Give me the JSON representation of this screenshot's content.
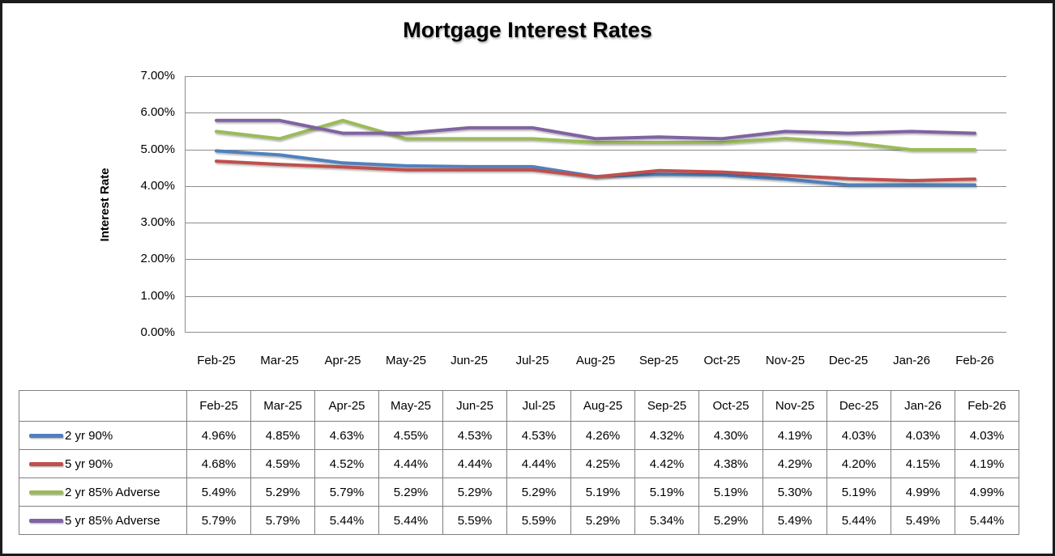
{
  "chart_data": {
    "type": "line",
    "title": "Mortgage Interest Rates",
    "xlabel": "",
    "ylabel": "Interest Rate",
    "categories": [
      "Feb-25",
      "Mar-25",
      "Apr-25",
      "May-25",
      "Jun-25",
      "Jul-25",
      "Aug-25",
      "Sep-25",
      "Oct-25",
      "Nov-25",
      "Dec-25",
      "Jan-26",
      "Feb-26"
    ],
    "series": [
      {
        "name": "2 yr 90%",
        "color": "#4F81BD",
        "values": [
          4.96,
          4.85,
          4.63,
          4.55,
          4.53,
          4.53,
          4.26,
          4.32,
          4.3,
          4.19,
          4.03,
          4.03,
          4.03
        ]
      },
      {
        "name": "5 yr 90%",
        "color": "#C0504D",
        "values": [
          4.68,
          4.59,
          4.52,
          4.44,
          4.44,
          4.44,
          4.25,
          4.42,
          4.38,
          4.29,
          4.2,
          4.15,
          4.19
        ]
      },
      {
        "name": "2 yr 85% Adverse",
        "color": "#9BBB59",
        "values": [
          5.49,
          5.29,
          5.79,
          5.29,
          5.29,
          5.29,
          5.19,
          5.19,
          5.19,
          5.3,
          5.19,
          4.99,
          4.99
        ]
      },
      {
        "name": "5 yr 85% Adverse",
        "color": "#8064A2",
        "values": [
          5.79,
          5.79,
          5.44,
          5.44,
          5.59,
          5.59,
          5.29,
          5.34,
          5.29,
          5.49,
          5.44,
          5.49,
          5.44
        ]
      }
    ],
    "ylim": [
      0,
      7
    ],
    "y_ticks": [
      0,
      1,
      2,
      3,
      4,
      5,
      6,
      7
    ],
    "y_tick_labels": [
      "0.00%",
      "1.00%",
      "2.00%",
      "3.00%",
      "4.00%",
      "5.00%",
      "6.00%",
      "7.00%"
    ],
    "grid": true,
    "grid_color": "#8c8c8c",
    "axis_color": "#8c8c8c",
    "legend_position": "table-left-column"
  },
  "table": {
    "columns": [
      "Feb-25",
      "Mar-25",
      "Apr-25",
      "May-25",
      "Jun-25",
      "Jul-25",
      "Aug-25",
      "Sep-25",
      "Oct-25",
      "Nov-25",
      "Dec-25",
      "Jan-26",
      "Feb-26"
    ],
    "rows": [
      {
        "label": "2 yr 90%",
        "values": [
          "4.96%",
          "4.85%",
          "4.63%",
          "4.55%",
          "4.53%",
          "4.53%",
          "4.26%",
          "4.32%",
          "4.30%",
          "4.19%",
          "4.03%",
          "4.03%",
          "4.03%"
        ]
      },
      {
        "label": "5 yr 90%",
        "values": [
          "4.68%",
          "4.59%",
          "4.52%",
          "4.44%",
          "4.44%",
          "4.44%",
          "4.25%",
          "4.42%",
          "4.38%",
          "4.29%",
          "4.20%",
          "4.15%",
          "4.19%"
        ]
      },
      {
        "label": "2 yr 85% Adverse",
        "values": [
          "5.49%",
          "5.29%",
          "5.79%",
          "5.29%",
          "5.29%",
          "5.29%",
          "5.19%",
          "5.19%",
          "5.19%",
          "5.30%",
          "5.19%",
          "4.99%",
          "4.99%"
        ]
      },
      {
        "label": "5 yr 85% Adverse",
        "values": [
          "5.79%",
          "5.79%",
          "5.44%",
          "5.44%",
          "5.59%",
          "5.59%",
          "5.29%",
          "5.34%",
          "5.29%",
          "5.49%",
          "5.44%",
          "5.49%",
          "5.44%"
        ]
      }
    ]
  },
  "frame": {
    "border_color": "#1c1c1c"
  }
}
